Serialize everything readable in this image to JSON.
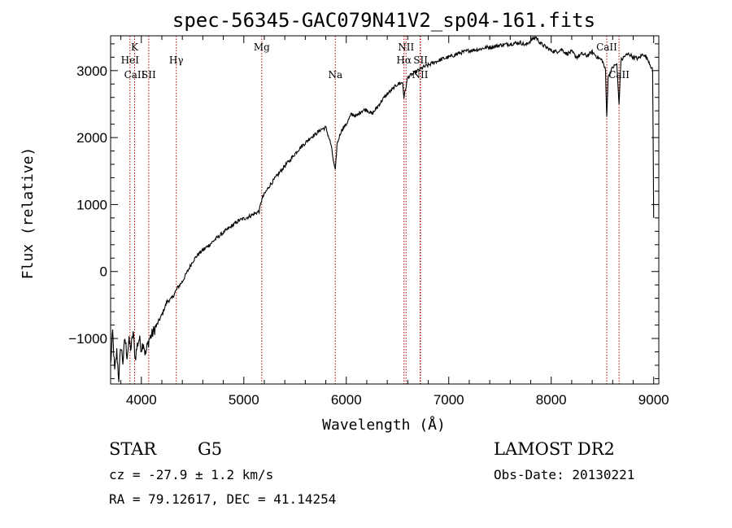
{
  "chart_data": {
    "type": "line",
    "title": "spec-56345-GAC079N41V2_sp04-161.fits",
    "xlabel": "Wavelength (Å)",
    "ylabel": "Flux (relative)",
    "xlim": [
      3700,
      9050
    ],
    "ylim": [
      -1680,
      3520
    ],
    "xticks": [
      4000,
      5000,
      6000,
      7000,
      8000,
      9000
    ],
    "yticks": [
      -1000,
      0,
      1000,
      2000,
      3000
    ],
    "spectral_lines": [
      {
        "label": "CaII",
        "wavelength": 3934,
        "tier": 1
      },
      {
        "label": "K",
        "wavelength": 3934,
        "tier": 3
      },
      {
        "label": "HeI",
        "wavelength": 3889,
        "tier": 2
      },
      {
        "label": "SII",
        "wavelength": 4072,
        "tier": 1
      },
      {
        "label": "Hγ",
        "wavelength": 4341,
        "tier": 2
      },
      {
        "label": "Mg",
        "wavelength": 5175,
        "tier": 3
      },
      {
        "label": "Na",
        "wavelength": 5893,
        "tier": 1
      },
      {
        "label": "NII",
        "wavelength": 6583,
        "tier": 3
      },
      {
        "label": "Hα",
        "wavelength": 6563,
        "tier": 2
      },
      {
        "label": "SII",
        "wavelength": 6725,
        "tier": 2
      },
      {
        "label": "NII",
        "wavelength": 6720,
        "tier": 1
      },
      {
        "label": "CaII",
        "wavelength": 8542,
        "tier": 3
      },
      {
        "label": "CaII",
        "wavelength": 8662,
        "tier": 1
      }
    ],
    "series": [
      {
        "x": [
          3700,
          3720,
          3740,
          3760,
          3780,
          3800,
          3820,
          3840,
          3860,
          3880,
          3900,
          3920,
          3940,
          3960,
          3980,
          4000,
          4020,
          4040,
          4060,
          4080,
          4100,
          4150,
          4200,
          4250,
          4300,
          4350,
          4400,
          4450,
          4500,
          4550,
          4600,
          4650,
          4700,
          4750,
          4800,
          4850,
          4900,
          4950,
          5000,
          5050,
          5100,
          5150,
          5175,
          5200,
          5250,
          5300,
          5350,
          5400,
          5450,
          5500,
          5550,
          5600,
          5650,
          5700,
          5750,
          5800,
          5850,
          5880,
          5893,
          5910,
          5950,
          6000,
          6050,
          6100,
          6150,
          6200,
          6250,
          6300,
          6350,
          6400,
          6450,
          6500,
          6550,
          6563,
          6600,
          6650,
          6700,
          6750,
          6800,
          6850,
          6900,
          6950,
          7000,
          7050,
          7100,
          7150,
          7200,
          7250,
          7300,
          7350,
          7400,
          7450,
          7500,
          7550,
          7600,
          7650,
          7700,
          7750,
          7800,
          7850,
          7900,
          7950,
          8000,
          8050,
          8100,
          8150,
          8200,
          8250,
          8300,
          8350,
          8400,
          8450,
          8500,
          8530,
          8542,
          8555,
          8600,
          8640,
          8662,
          8680,
          8720,
          8760,
          8800,
          8850,
          8900,
          8950,
          8990,
          9000
        ],
        "y": [
          -1400,
          -900,
          -1500,
          -1200,
          -1600,
          -1100,
          -1350,
          -1000,
          -1250,
          -1050,
          -1150,
          -900,
          -1300,
          -1100,
          -1000,
          -1150,
          -1050,
          -1250,
          -1100,
          -1000,
          -950,
          -800,
          -650,
          -450,
          -400,
          -250,
          -150,
          0,
          150,
          250,
          320,
          380,
          450,
          520,
          580,
          640,
          700,
          760,
          790,
          820,
          860,
          900,
          1080,
          1150,
          1280,
          1380,
          1480,
          1580,
          1660,
          1760,
          1850,
          1920,
          2000,
          2050,
          2120,
          2150,
          1900,
          1600,
          1500,
          1900,
          2100,
          2200,
          2350,
          2320,
          2400,
          2420,
          2350,
          2450,
          2560,
          2650,
          2720,
          2800,
          2820,
          2600,
          2900,
          2950,
          3000,
          3050,
          3080,
          3120,
          3150,
          3180,
          3200,
          3230,
          3260,
          3280,
          3300,
          3310,
          3320,
          3340,
          3350,
          3360,
          3380,
          3390,
          3400,
          3410,
          3420,
          3380,
          3450,
          3500,
          3400,
          3350,
          3300,
          3280,
          3320,
          3250,
          3280,
          3200,
          3250,
          3220,
          3280,
          3200,
          3150,
          3000,
          2300,
          2900,
          3050,
          3100,
          2500,
          3150,
          3220,
          3250,
          3200,
          3180,
          3250,
          3150,
          3000,
          800
        ]
      }
    ]
  },
  "info": {
    "object_class": "STAR",
    "subclass": "G5",
    "survey": "LAMOST DR2",
    "redshift": "cz = -27.9 ± 1.2 km/s",
    "obs_date": "Obs-Date: 20130221",
    "coordinates": "RA =  79.12617, DEC =  41.14254"
  }
}
